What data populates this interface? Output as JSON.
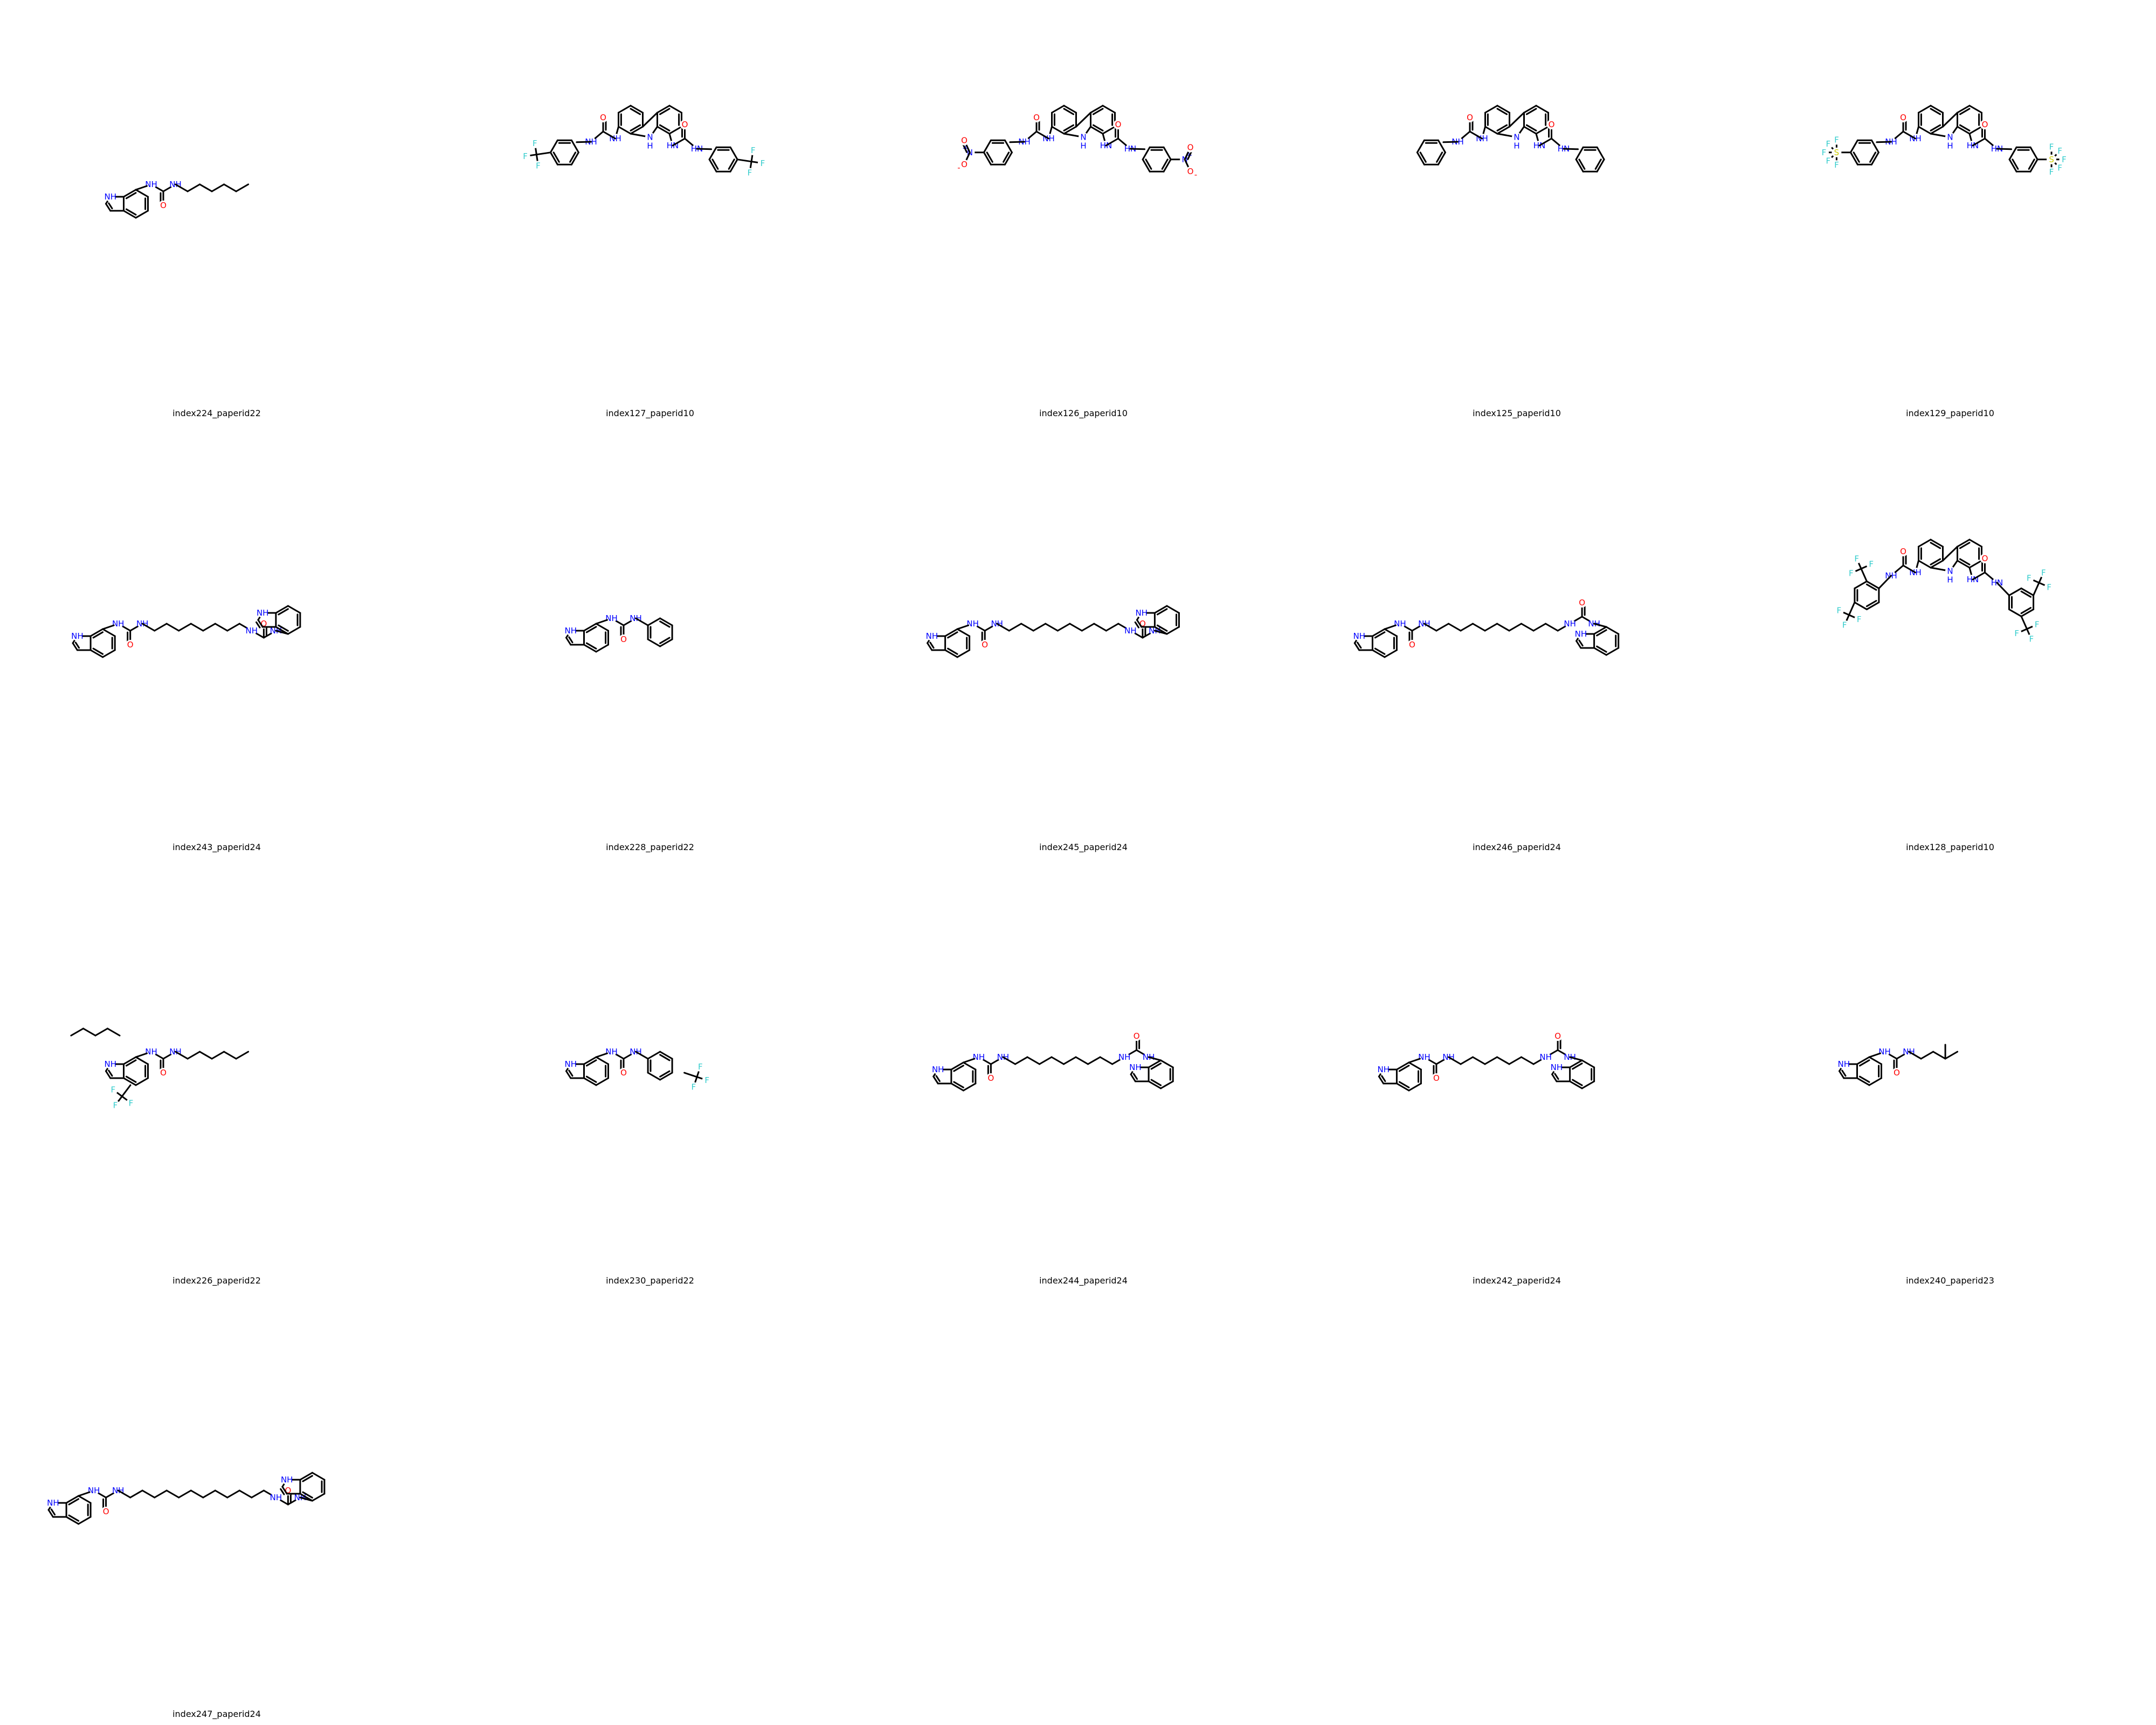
{
  "colors": {
    "background": "#ffffff",
    "bond": "#000000",
    "nitrogen": "#0000ff",
    "oxygen": "#ff0000",
    "fluorine": "#33cccc",
    "sulfur": "#cccc00"
  },
  "atom_labels": {
    "nh": "NH",
    "hn": "HN",
    "n": "N",
    "h": "H",
    "o": "O",
    "f": "F",
    "s": "S",
    "plus": "+",
    "minus": "-"
  },
  "molecules": [
    {
      "label": "index224_paperid22",
      "kind": "urea",
      "chain": 7
    },
    {
      "label": "index127_paperid10",
      "kind": "carbazole",
      "sub": "CF3"
    },
    {
      "label": "index126_paperid10",
      "kind": "carbazole",
      "sub": "NO2"
    },
    {
      "label": "index125_paperid10",
      "kind": "carbazole",
      "sub": "H"
    },
    {
      "label": "index129_paperid10",
      "kind": "carbazole",
      "sub": "SF5"
    },
    {
      "label": "index243_paperid24",
      "kind": "bis",
      "chain": 9,
      "end": "down"
    },
    {
      "label": "index228_paperid22",
      "kind": "aryl",
      "sub": "H"
    },
    {
      "label": "index245_paperid24",
      "kind": "bis",
      "chain": 11,
      "end": "down"
    },
    {
      "label": "index246_paperid24",
      "kind": "bis",
      "chain": 12,
      "end": "up"
    },
    {
      "label": "index128_paperid10",
      "kind": "carbazole",
      "sub": "bisCF3"
    },
    {
      "label": "index226_paperid22",
      "kind": "urea",
      "chain": 7,
      "extra": "butyl-cf3"
    },
    {
      "label": "index230_paperid22",
      "kind": "aryl",
      "sub": "CF3"
    },
    {
      "label": "index244_paperid24",
      "kind": "bis",
      "chain": 10,
      "end": "up"
    },
    {
      "label": "index242_paperid24",
      "kind": "bis",
      "chain": 8,
      "end": "up"
    },
    {
      "label": "index240_paperid23",
      "kind": "urea",
      "chain": "isopentyl"
    },
    {
      "label": "index247_paperid24",
      "kind": "bis",
      "chain": 13,
      "end": "down"
    }
  ]
}
